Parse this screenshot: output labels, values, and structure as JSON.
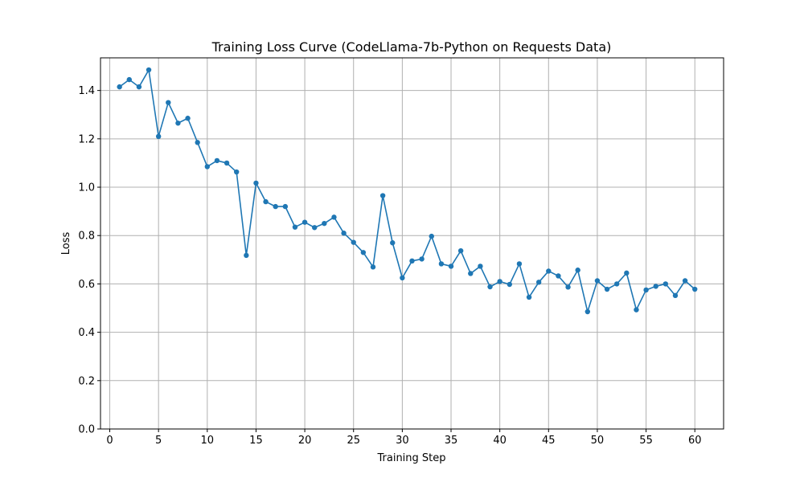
{
  "chart_data": {
    "type": "line",
    "title": "Training Loss Curve (CodeLlama-7b-Python on Requests Data)",
    "xlabel": "Training Step",
    "ylabel": "Loss",
    "xlim": [
      -0.95,
      62.95
    ],
    "ylim": [
      0,
      1.535
    ],
    "xticks": [
      0,
      5,
      10,
      15,
      20,
      25,
      30,
      35,
      40,
      45,
      50,
      55,
      60
    ],
    "yticks": [
      0.0,
      0.2,
      0.4,
      0.6,
      0.8,
      1.0,
      1.2,
      1.4
    ],
    "ytick_labels": [
      "0.0",
      "0.2",
      "0.4",
      "0.6",
      "0.8",
      "1.0",
      "1.2",
      "1.4"
    ],
    "grid": true,
    "color": "#1f77b4",
    "series": [
      {
        "x": [
          1,
          2,
          3,
          4,
          5,
          6,
          7,
          8,
          9,
          10,
          11,
          12,
          13,
          14,
          15,
          16,
          17,
          18,
          19,
          20,
          21,
          22,
          23,
          24,
          25,
          26,
          27,
          28,
          29,
          30,
          31,
          32,
          33,
          34,
          35,
          36,
          37,
          38,
          39,
          40,
          41,
          42,
          43,
          44,
          45,
          46,
          47,
          48,
          49,
          50,
          51,
          52,
          53,
          54,
          55,
          56,
          57,
          58,
          59,
          60
        ],
        "values": [
          1.415,
          1.445,
          1.415,
          1.485,
          1.21,
          1.35,
          1.265,
          1.285,
          1.185,
          1.085,
          1.11,
          1.1,
          1.063,
          0.718,
          1.017,
          0.94,
          0.92,
          0.92,
          0.835,
          0.855,
          0.833,
          0.85,
          0.876,
          0.81,
          0.772,
          0.73,
          0.67,
          0.965,
          0.77,
          0.625,
          0.695,
          0.703,
          0.797,
          0.683,
          0.673,
          0.737,
          0.643,
          0.673,
          0.588,
          0.61,
          0.598,
          0.683,
          0.545,
          0.607,
          0.653,
          0.633,
          0.587,
          0.657,
          0.485,
          0.613,
          0.578,
          0.6,
          0.645,
          0.493,
          0.575,
          0.59,
          0.6,
          0.552,
          0.613,
          0.578
        ]
      }
    ]
  }
}
